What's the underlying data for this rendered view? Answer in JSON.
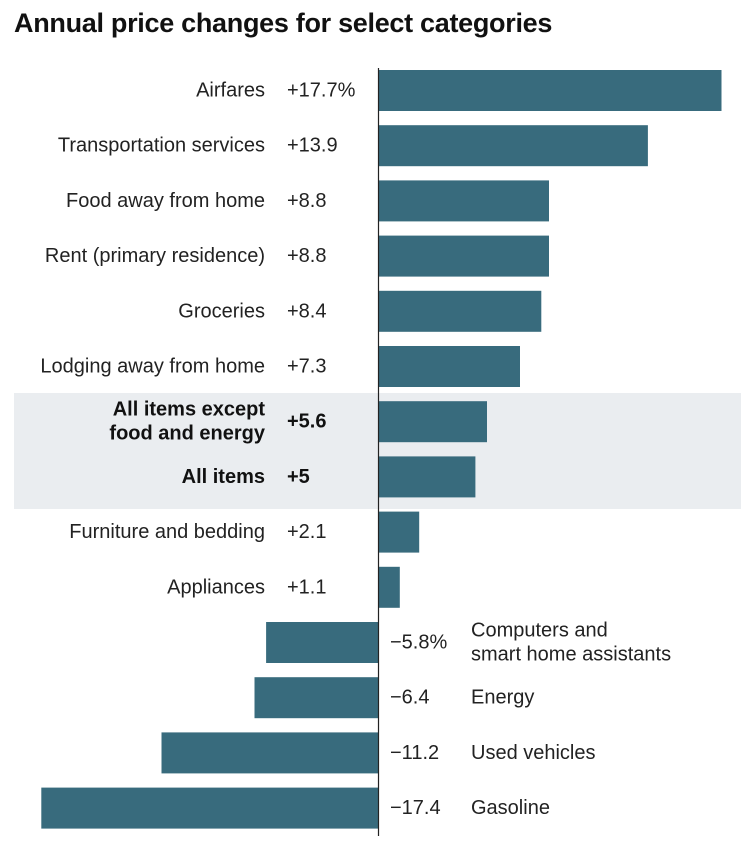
{
  "chart_data": {
    "type": "bar",
    "orientation": "horizontal",
    "title": "Annual price changes for select categories",
    "xlabel": "",
    "ylabel": "",
    "xlim": [
      -17.4,
      17.7
    ],
    "grid": false,
    "bar_color": "#386b7d",
    "highlight_color": "#eaedf0",
    "categories": [
      "Airfares",
      "Transportation services",
      "Food away from home",
      "Rent (primary residence)",
      "Groceries",
      "Lodging away from home",
      "All items except food and energy",
      "All items",
      "Furniture and bedding",
      "Appliances",
      "Computers and smart home assistants",
      "Energy",
      "Used vehicles",
      "Gasoline"
    ],
    "values": [
      17.7,
      13.9,
      8.8,
      8.8,
      8.4,
      7.3,
      5.6,
      5.0,
      2.1,
      1.1,
      -5.8,
      -6.4,
      -11.2,
      -17.4
    ],
    "value_labels": [
      "+17.7%",
      "+13.9",
      "+8.8",
      "+8.8",
      "+8.4",
      "+7.3",
      "+5.6",
      "+5",
      "+2.1",
      "+1.1",
      "−5.8%",
      "−6.4",
      "−11.2",
      "−17.4"
    ],
    "category_label_lines": [
      [
        "Airfares"
      ],
      [
        "Transportation services"
      ],
      [
        "Food away from home"
      ],
      [
        "Rent (primary residence)"
      ],
      [
        "Groceries"
      ],
      [
        "Lodging away from home"
      ],
      [
        "All items except",
        "food and energy"
      ],
      [
        "All items"
      ],
      [
        "Furniture and bedding"
      ],
      [
        "Appliances"
      ],
      [
        "Computers and",
        "smart home assistants"
      ],
      [
        "Energy"
      ],
      [
        "Used vehicles"
      ],
      [
        "Gasoline"
      ]
    ],
    "highlighted": [
      false,
      false,
      false,
      false,
      false,
      false,
      true,
      true,
      false,
      false,
      false,
      false,
      false,
      false
    ]
  }
}
